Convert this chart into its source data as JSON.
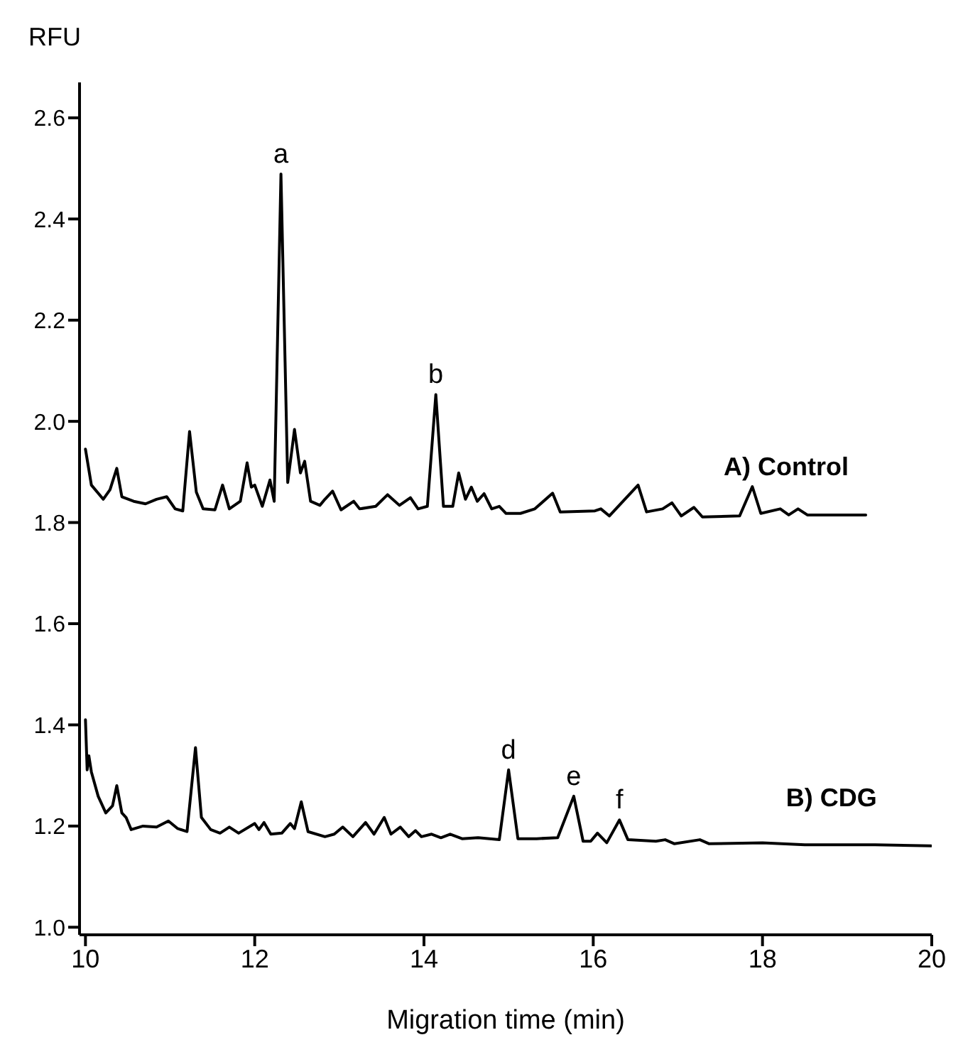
{
  "chart_data": {
    "type": "line",
    "xlabel": "Migration time (min)",
    "ylabel": "RFU",
    "xlim": [
      9.93,
      20
    ],
    "ylim": [
      0.985,
      2.67
    ],
    "xticks": [
      10,
      12,
      14,
      16,
      18,
      20
    ],
    "yticks": [
      {
        "value": 1,
        "label": "1.0"
      },
      {
        "value": 1.2,
        "label": "1.2"
      },
      {
        "value": 1.4,
        "label": "1.4"
      },
      {
        "value": 1.6,
        "label": "1.6"
      },
      {
        "value": 1.8,
        "label": "1.8"
      },
      {
        "value": 2,
        "label": "2.0"
      },
      {
        "value": 2.2,
        "label": "2.2"
      },
      {
        "value": 2.4,
        "label": "2.4"
      },
      {
        "value": 2.6,
        "label": "2.6"
      }
    ],
    "grid": false,
    "legend": false,
    "marker": "none",
    "line_style": "solid",
    "series": [
      {
        "name": "A) Control",
        "color": "#000000",
        "x": [
          10.0,
          10.07,
          10.21,
          10.29,
          10.37,
          10.43,
          10.57,
          10.71,
          10.84,
          10.96,
          11.06,
          11.15,
          11.23,
          11.31,
          11.39,
          11.53,
          11.62,
          11.7,
          11.83,
          11.91,
          11.96,
          12.0,
          12.09,
          12.18,
          12.23,
          12.31,
          12.39,
          12.47,
          12.54,
          12.59,
          12.66,
          12.77,
          12.83,
          12.92,
          13.02,
          13.17,
          13.24,
          13.43,
          13.57,
          13.71,
          13.84,
          13.93,
          14.04,
          14.14,
          14.23,
          14.34,
          14.41,
          14.49,
          14.56,
          14.63,
          14.71,
          14.8,
          14.89,
          14.97,
          15.14,
          15.31,
          15.52,
          15.61,
          16.02,
          16.09,
          16.19,
          16.53,
          16.63,
          16.82,
          16.93,
          17.04,
          17.19,
          17.29,
          17.73,
          17.88,
          17.98,
          18.21,
          18.31,
          18.42,
          18.53,
          19.22
        ],
        "values": [
          1.945,
          1.874,
          1.846,
          1.865,
          1.907,
          1.851,
          1.842,
          1.837,
          1.846,
          1.851,
          1.827,
          1.823,
          1.98,
          1.86,
          1.827,
          1.825,
          1.874,
          1.827,
          1.842,
          1.918,
          1.87,
          1.874,
          1.832,
          1.884,
          1.842,
          2.489,
          1.879,
          1.984,
          1.898,
          1.921,
          1.842,
          1.834,
          1.846,
          1.862,
          1.825,
          1.842,
          1.827,
          1.832,
          1.855,
          1.834,
          1.849,
          1.827,
          1.832,
          2.053,
          1.832,
          1.832,
          1.898,
          1.846,
          1.87,
          1.842,
          1.857,
          1.827,
          1.832,
          1.818,
          1.818,
          1.827,
          1.858,
          1.821,
          1.823,
          1.827,
          1.813,
          1.874,
          1.821,
          1.827,
          1.839,
          1.813,
          1.83,
          1.811,
          1.813,
          1.871,
          1.818,
          1.827,
          1.815,
          1.827,
          1.815,
          1.815
        ]
      },
      {
        "name": "B) CDG",
        "color": "#000000",
        "x": [
          10.0,
          10.02,
          10.04,
          10.07,
          10.15,
          10.24,
          10.32,
          10.37,
          10.43,
          10.48,
          10.54,
          10.68,
          10.84,
          10.98,
          11.09,
          11.2,
          11.3,
          11.37,
          11.48,
          11.59,
          11.7,
          11.81,
          12.0,
          12.05,
          12.11,
          12.19,
          12.32,
          12.42,
          12.47,
          12.55,
          12.63,
          12.83,
          12.94,
          13.04,
          13.16,
          13.31,
          13.41,
          13.53,
          13.61,
          13.72,
          13.82,
          13.9,
          13.97,
          14.09,
          14.2,
          14.31,
          14.45,
          14.64,
          14.89,
          15.0,
          15.11,
          15.33,
          15.58,
          15.77,
          15.88,
          15.97,
          16.05,
          16.16,
          16.31,
          16.41,
          16.74,
          16.85,
          16.96,
          17.26,
          17.37,
          18.0,
          18.5,
          19.33,
          19.99
        ],
        "values": [
          1.41,
          1.311,
          1.339,
          1.307,
          1.259,
          1.226,
          1.24,
          1.28,
          1.226,
          1.217,
          1.193,
          1.2,
          1.198,
          1.21,
          1.195,
          1.189,
          1.355,
          1.217,
          1.193,
          1.186,
          1.198,
          1.186,
          1.205,
          1.193,
          1.207,
          1.184,
          1.186,
          1.205,
          1.195,
          1.248,
          1.189,
          1.179,
          1.184,
          1.198,
          1.179,
          1.207,
          1.184,
          1.217,
          1.184,
          1.198,
          1.179,
          1.191,
          1.179,
          1.184,
          1.177,
          1.184,
          1.175,
          1.177,
          1.173,
          1.311,
          1.175,
          1.175,
          1.177,
          1.259,
          1.17,
          1.17,
          1.186,
          1.167,
          1.212,
          1.173,
          1.17,
          1.173,
          1.165,
          1.173,
          1.165,
          1.167,
          1.163,
          1.163,
          1.161
        ]
      }
    ],
    "annotations": [
      {
        "text": "a",
        "x": 12.31,
        "y": 2.489
      },
      {
        "text": "b",
        "x": 14.14,
        "y": 2.053
      },
      {
        "text": "d",
        "x": 15.0,
        "y": 1.311
      },
      {
        "text": "e",
        "x": 15.77,
        "y": 1.259
      },
      {
        "text": "f",
        "x": 16.31,
        "y": 1.212
      }
    ]
  }
}
